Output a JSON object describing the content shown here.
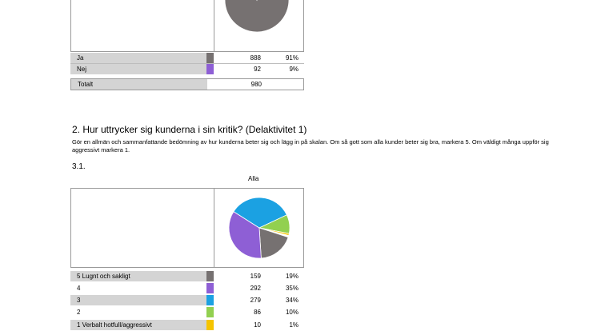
{
  "table1": {
    "rows": [
      {
        "label": "Ja",
        "n": "888",
        "pct": "91%",
        "color": "#767171"
      },
      {
        "label": "Nej",
        "n": "92",
        "pct": "9%",
        "color": "#8e5fd5"
      }
    ],
    "total": {
      "label": "Totalt",
      "n": "980"
    },
    "pie_fractions": [
      0.906,
      0.094
    ]
  },
  "question": {
    "title": "2. Hur uttrycker sig kunderna i sin kritik?  (Delaktivitet 1)",
    "description": "Gör en allmän och sammanfattande bedömning av hur kunderna beter sig och lägg in på skalan. Om så gott som alla kunder beter sig bra, markera 5. Om väldigt många uppför sig aggressivt markera 1.",
    "subnumber": "3.1."
  },
  "table2": {
    "header": "Alla",
    "rows": [
      {
        "label": "5 Lugnt och sakligt",
        "n": "159",
        "pct": "19%",
        "color": "#767171"
      },
      {
        "label": "4",
        "n": "292",
        "pct": "35%",
        "color": "#8e5fd5"
      },
      {
        "label": "3",
        "n": "279",
        "pct": "34%",
        "color": "#1ba1e2"
      },
      {
        "label": "2",
        "n": "86",
        "pct": "10%",
        "color": "#92d050"
      },
      {
        "label": "1 Verbalt hotfull/aggressivt",
        "n": "10",
        "pct": "1%",
        "color": "#f5c400"
      }
    ],
    "pie_fractions": [
      0.19,
      0.35,
      0.34,
      0.1,
      0.01
    ]
  }
}
